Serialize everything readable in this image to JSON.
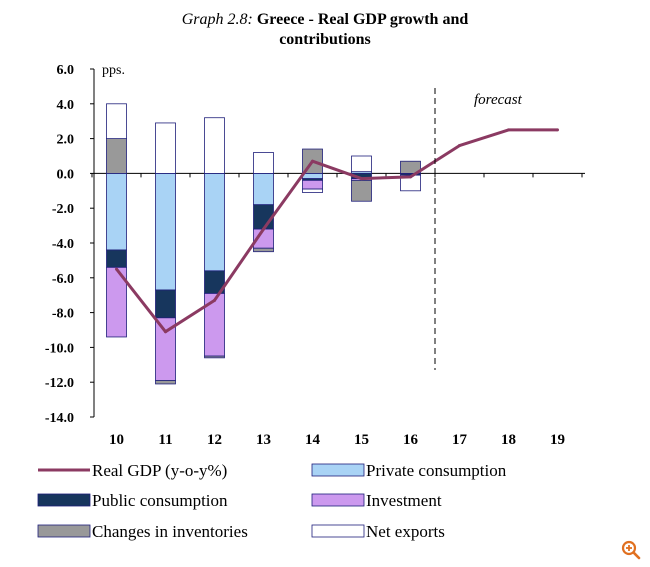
{
  "title": {
    "label": "Graph 2.8:",
    "main_line1": "Greece - Real GDP growth and",
    "main_line2": "contributions"
  },
  "colors": {
    "gdp_line": "#8b3a62",
    "private_consumption": "#a9d3f5",
    "public_consumption": "#17365d",
    "investment": "#cc99ee",
    "changes_in_inventories": "#999999",
    "net_exports": "#ffffff",
    "bar_outline": "#1f1f7a",
    "zoom_icon": "#e07020"
  },
  "chart_data": {
    "type": "bar",
    "stacked": true,
    "combined_with": "line",
    "title": "Graph 2.8: Greece - Real GDP growth and contributions",
    "ylabel": "pps.",
    "ylim": [
      -14.0,
      6.0
    ],
    "yticks": [
      "6.0",
      "4.0",
      "2.0",
      "0.0",
      "-2.0",
      "-4.0",
      "-6.0",
      "-8.0",
      "-10.0",
      "-12.0",
      "-14.0"
    ],
    "categories": [
      "10",
      "11",
      "12",
      "13",
      "14",
      "15",
      "16",
      "17",
      "18",
      "19"
    ],
    "annotation": "forecast",
    "forecast_divider_after": "16",
    "series": [
      {
        "name": "Private consumption",
        "kind": "bar",
        "values": [
          -4.4,
          -6.7,
          -5.6,
          -1.8,
          -0.3,
          0.1,
          0.0,
          null,
          null,
          null
        ]
      },
      {
        "name": "Public consumption",
        "kind": "bar",
        "values": [
          -1.0,
          -1.6,
          -1.3,
          -1.4,
          -0.1,
          -0.3,
          -0.1,
          null,
          null,
          null
        ]
      },
      {
        "name": "Investment",
        "kind": "bar",
        "values": [
          -4.0,
          -3.6,
          -3.6,
          -1.1,
          -0.5,
          -0.1,
          0.0,
          null,
          null,
          null
        ]
      },
      {
        "name": "Changes in inventories",
        "kind": "bar",
        "values": [
          2.0,
          -0.2,
          -0.1,
          -0.2,
          1.4,
          -1.2,
          0.7,
          null,
          null,
          null
        ]
      },
      {
        "name": "Net exports",
        "kind": "bar",
        "values": [
          2.0,
          2.9,
          3.2,
          1.2,
          -0.2,
          0.9,
          -0.9,
          null,
          null,
          null
        ]
      },
      {
        "name": "Real GDP (y-o-y%)",
        "kind": "line",
        "values": [
          -5.5,
          -9.1,
          -7.3,
          -3.2,
          0.7,
          -0.3,
          -0.2,
          1.6,
          2.5,
          2.5
        ]
      }
    ]
  },
  "legend": [
    {
      "name": "Real GDP (y-o-y%)",
      "kind": "line",
      "color_key": "gdp_line"
    },
    {
      "name": "Private consumption",
      "kind": "bar",
      "color_key": "private_consumption"
    },
    {
      "name": "Public consumption",
      "kind": "bar",
      "color_key": "public_consumption"
    },
    {
      "name": "Investment",
      "kind": "bar",
      "color_key": "investment"
    },
    {
      "name": "Changes in inventories",
      "kind": "bar",
      "color_key": "changes_in_inventories"
    },
    {
      "name": "Net exports",
      "kind": "bar",
      "color_key": "net_exports"
    }
  ],
  "toolbar": {
    "zoom_icon": "zoom-in-icon"
  }
}
